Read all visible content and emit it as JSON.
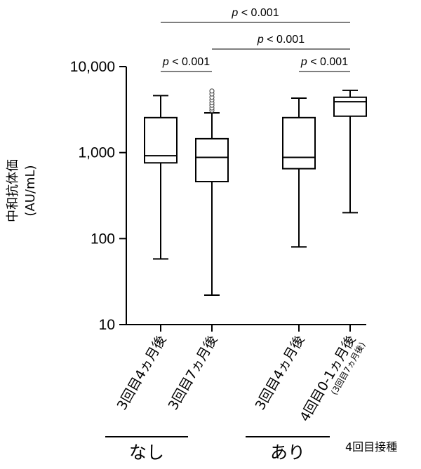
{
  "chart_data": {
    "type": "boxplot",
    "ylabel": "中和抗体価",
    "ylabel_unit": "(AU/mL)",
    "y_scale": "log",
    "ylim": [
      10,
      10000
    ],
    "yticks": [
      10,
      100,
      1000,
      10000
    ],
    "ytick_labels": [
      "10",
      "100",
      "1,000",
      "10,000"
    ],
    "categories": [
      {
        "label": "3回目4ヵ月後",
        "sublabel": ""
      },
      {
        "label": "3回目7ヵ月後",
        "sublabel": ""
      },
      {
        "label": "3回目4ヵ月後",
        "sublabel": ""
      },
      {
        "label": "4回目0-1ヵ月後",
        "sublabel": "(3回目7ヵ月後)"
      }
    ],
    "boxes": [
      {
        "min": 58,
        "q1": 760,
        "median": 920,
        "q3": 2550,
        "max": 4600,
        "outliers": []
      },
      {
        "min": 22,
        "q1": 460,
        "median": 880,
        "q3": 1450,
        "max": 2900,
        "outliers": [
          3100,
          3300,
          3550,
          3800,
          4100,
          4400,
          4800,
          5200
        ]
      },
      {
        "min": 80,
        "q1": 650,
        "median": 880,
        "q3": 2550,
        "max": 4300,
        "outliers": []
      },
      {
        "min": 200,
        "q1": 2650,
        "median": 3900,
        "q3": 4400,
        "max": 5300,
        "outliers": []
      }
    ],
    "groups": [
      {
        "label": "なし",
        "categories": [
          0,
          1
        ]
      },
      {
        "label": "あり",
        "categories": [
          2,
          3
        ]
      }
    ],
    "group_title": "4回目接種",
    "comparisons": [
      {
        "from": 0,
        "to": 1,
        "p_symbol": "p",
        "p_rest": " < 0.001"
      },
      {
        "from": 2,
        "to": 3,
        "p_symbol": "p",
        "p_rest": " < 0.001"
      },
      {
        "from": 1,
        "to": 3,
        "p_symbol": "p",
        "p_rest": " < 0.001"
      },
      {
        "from": 0,
        "to": 3,
        "p_symbol": "p",
        "p_rest": " < 0.001"
      }
    ]
  }
}
